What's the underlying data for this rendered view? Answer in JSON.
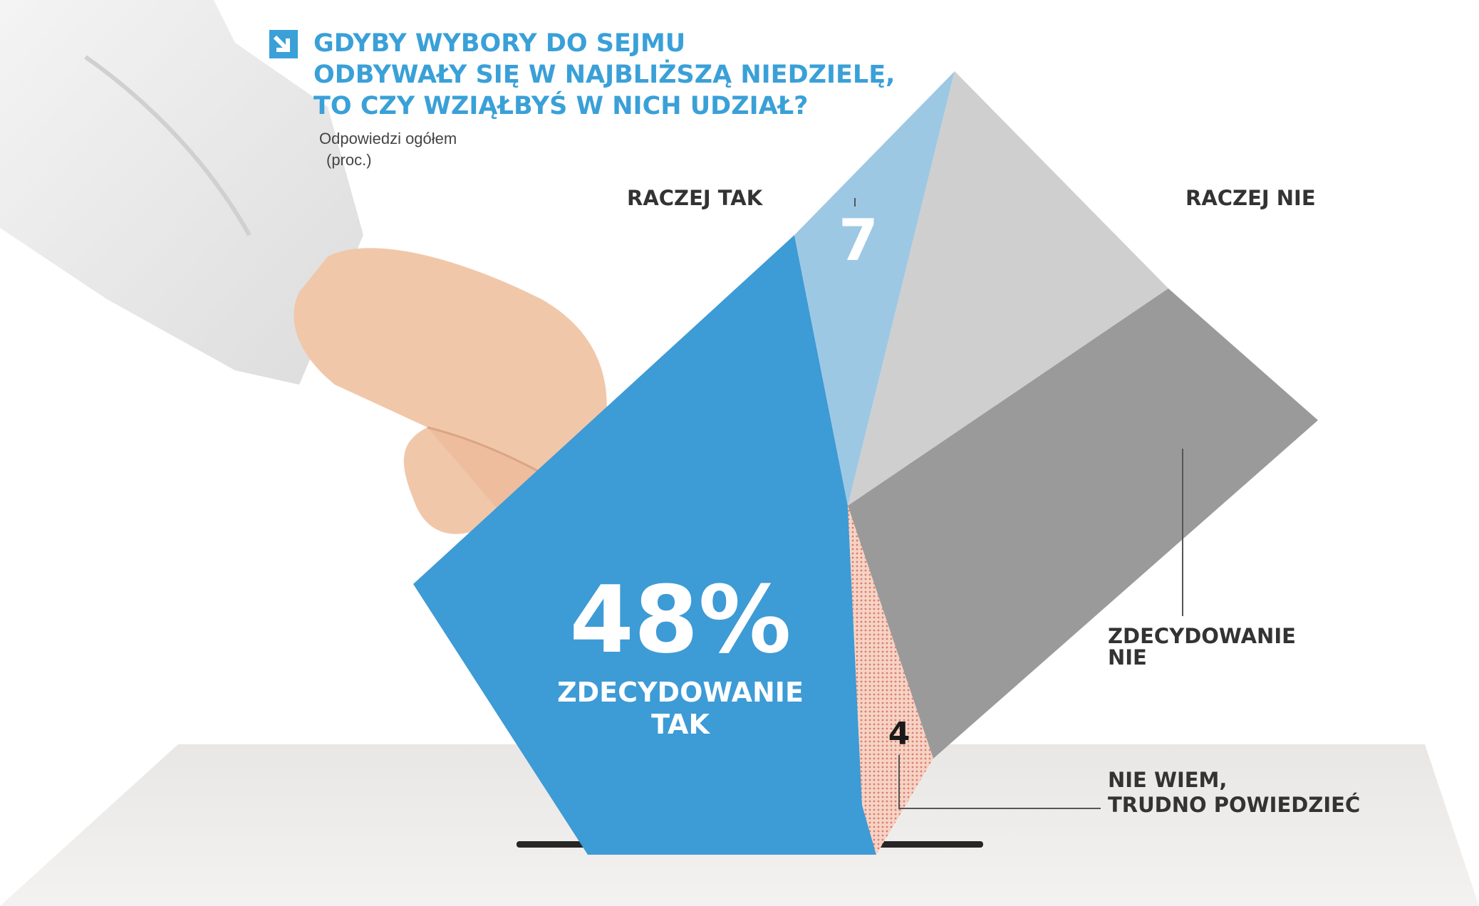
{
  "title_lines": [
    "GDYBY WYBORY DO SEJMU",
    "ODBYWAŁY SIĘ W NAJBLIŻSZĄ NIEDZIELĘ,",
    "TO CZY WZIĄŁBYŚ W NICH UDZIAŁ?"
  ],
  "subtitle": "Odpowiedzi ogółem",
  "unit": "(proc.)",
  "chart_data": {
    "type": "pie",
    "title": "GDYBY WYBORY DO SEJMU ODBYWAŁY SIĘ W NAJBLIŻSZĄ NIEDZIELĘ, TO CZY WZIĄŁBYŚ W NICH UDZIAŁ?",
    "subtitle": "Odpowiedzi ogółem",
    "unit": "(proc.)",
    "slices": [
      {
        "label": "ZDECYDOWANIE TAK",
        "value": 48,
        "display": "48%",
        "color": "#3d9bd6"
      },
      {
        "label": "RACZEJ TAK",
        "value": 7,
        "display": "7",
        "color": "#9dc8e4"
      },
      {
        "label": "RACZEJ NIE",
        "value": null,
        "display": "",
        "color": "#cfcfcf"
      },
      {
        "label": "ZDECYDOWANIE NIE",
        "value": null,
        "display": "",
        "color": "#9a9a9a"
      },
      {
        "label": "NIE WIEM, TRUDNO POWIEDZIEĆ",
        "value": 4,
        "display": "4",
        "color": "#f0b7a6"
      }
    ],
    "legend_placement": "labels around chart"
  },
  "labels": {
    "raczej_tak": "RACZEJ TAK",
    "raczej_nie": "RACZEJ NIE",
    "zdecydowanie_tak_line1": "ZDECYDOWANIE",
    "zdecydowanie_tak_line2": "TAK",
    "zdecydowanie_nie_line1": "ZDECYDOWANIE",
    "zdecydowanie_nie_line2": "NIE",
    "nie_wiem_line1": "NIE WIEM,",
    "nie_wiem_line2": "TRUDNO POWIEDZIEĆ"
  },
  "colors": {
    "title": "#3aa0d8",
    "blue_dark": "#3d9bd6",
    "blue_light": "#9dc8e4",
    "grey_light": "#cfcfcf",
    "grey_dark": "#9a9a9a",
    "salmon": "#f0b7a6"
  },
  "icons": {
    "title_arrow": "arrow-down-right-icon"
  }
}
